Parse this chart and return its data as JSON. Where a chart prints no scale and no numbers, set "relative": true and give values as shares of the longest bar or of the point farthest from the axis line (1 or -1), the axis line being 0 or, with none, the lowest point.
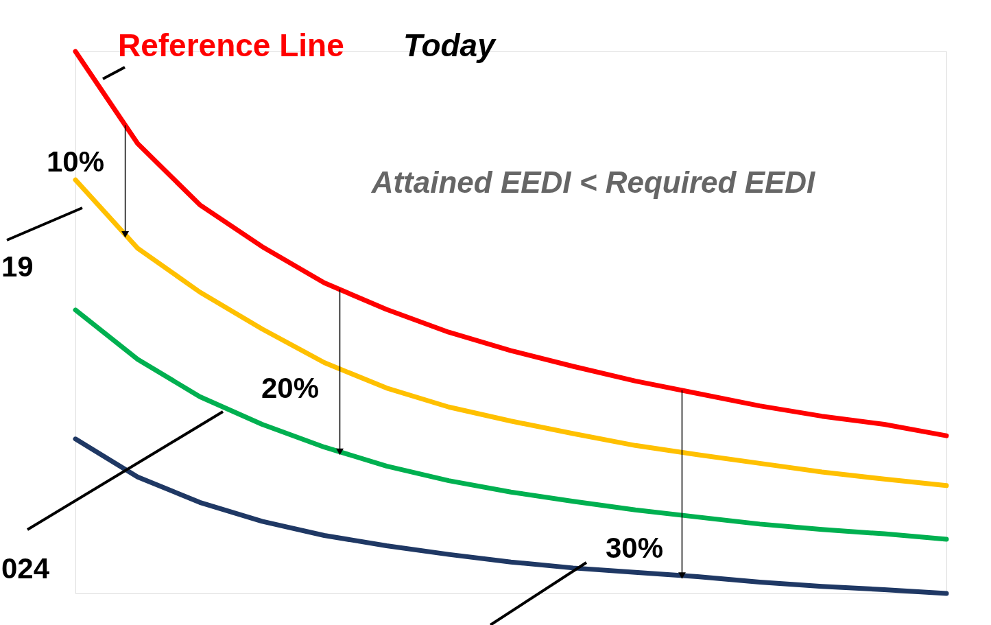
{
  "chart_data": {
    "type": "line",
    "relative": true,
    "categories": [
      null,
      null,
      null,
      null,
      null,
      null,
      null,
      null,
      null,
      null,
      null,
      null,
      null,
      null,
      null
    ],
    "series": [
      {
        "color": "#ff0000",
        "values": [
          1.0,
          0.83,
          0.717,
          0.64,
          0.573,
          0.524,
          0.482,
          0.448,
          0.419,
          0.392,
          0.369,
          0.346,
          0.327,
          0.312,
          0.291
        ]
      },
      {
        "color": "#ffc000",
        "values": [
          0.763,
          0.637,
          0.556,
          0.488,
          0.426,
          0.379,
          0.344,
          0.318,
          0.295,
          0.273,
          0.256,
          0.24,
          0.224,
          0.211,
          0.199
        ]
      },
      {
        "color": "#00b050",
        "values": [
          0.523,
          0.432,
          0.363,
          0.312,
          0.27,
          0.235,
          0.208,
          0.187,
          0.17,
          0.154,
          0.141,
          0.128,
          0.118,
          0.11,
          0.1
        ]
      },
      {
        "color": "#1f3864",
        "values": [
          0.285,
          0.215,
          0.168,
          0.133,
          0.107,
          0.088,
          0.072,
          0.058,
          0.047,
          0.039,
          0.031,
          0.021,
          0.013,
          0.007,
          0.0
        ]
      }
    ],
    "annotations": [
      "Reference Line",
      "Today",
      "Attained EEDI < Required EEDI",
      "10%",
      "20%",
      "30%",
      "19",
      "024"
    ],
    "legend": false,
    "marker": "none",
    "line_style": "solid"
  }
}
